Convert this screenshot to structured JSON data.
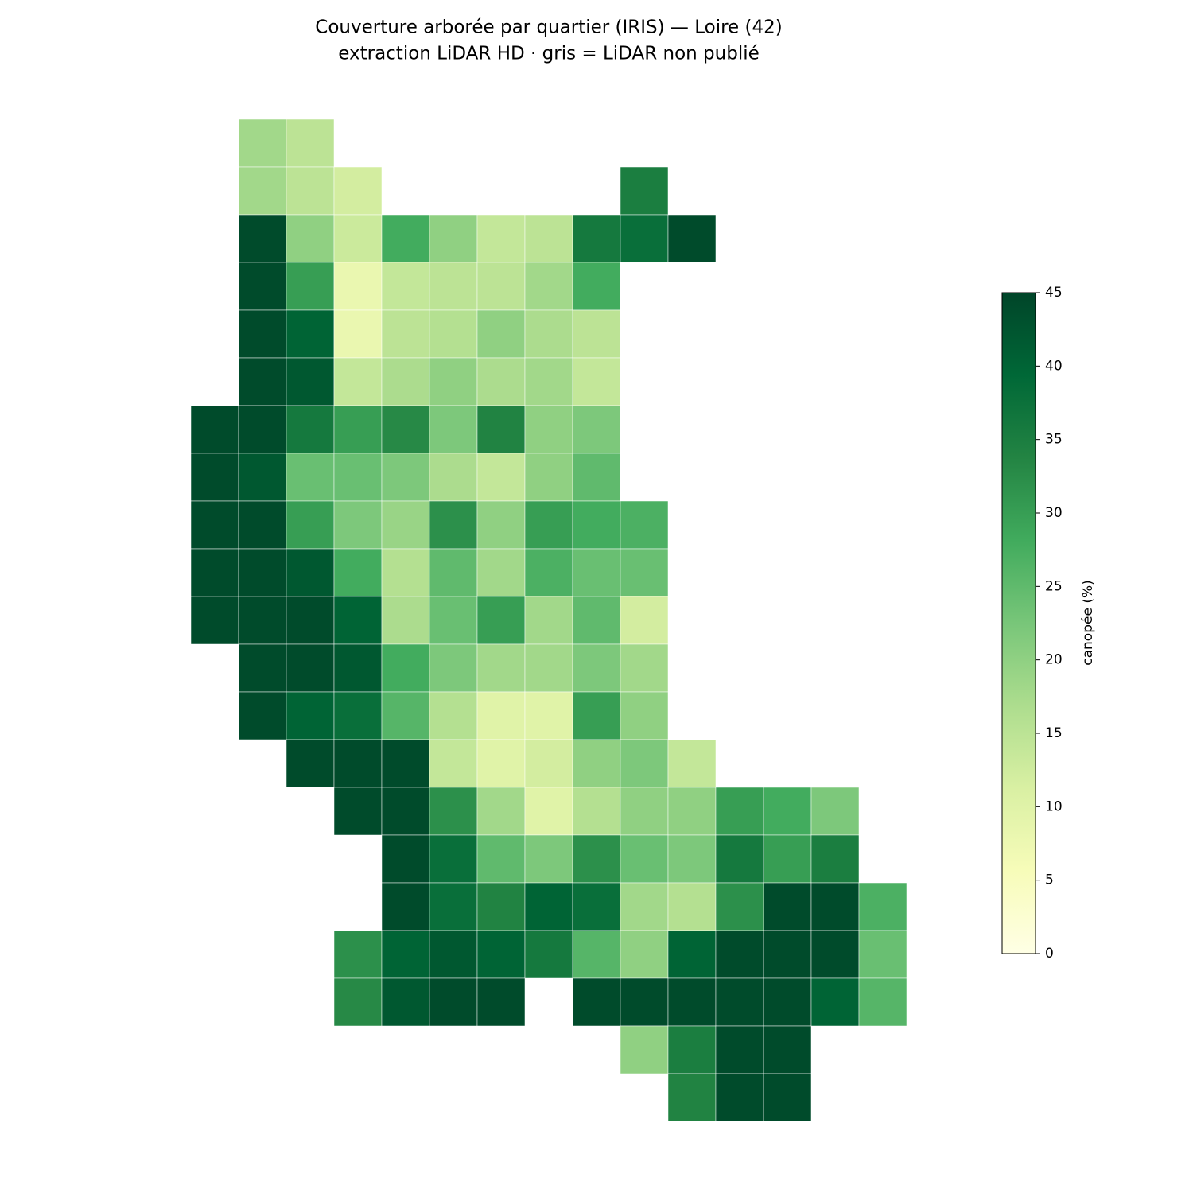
{
  "chart_data": {
    "type": "choropleth",
    "title": "Couverture arborée par quartier (IRIS) — Loire (42)",
    "subtitle": "extraction LiDAR HD · gris = LiDAR non publié",
    "colorbar_label": "canopée (%)",
    "clim": [
      0,
      45
    ],
    "cticks": [
      0,
      5,
      10,
      15,
      20,
      25,
      30,
      35,
      40,
      45
    ],
    "colorscale": [
      "#ffffe5",
      "#f7fcb9",
      "#d9f0a3",
      "#addd8e",
      "#78c679",
      "#41ab5d",
      "#238443",
      "#006837",
      "#004529"
    ],
    "cells": [
      [
        null,
        18,
        15,
        null,
        null,
        null,
        null,
        null,
        null,
        null,
        null,
        null,
        null,
        null,
        null
      ],
      [
        null,
        18,
        15,
        12,
        null,
        null,
        null,
        null,
        null,
        35,
        null,
        null,
        null,
        null,
        null
      ],
      [
        null,
        44,
        20,
        13,
        28,
        20,
        14,
        15,
        36,
        38,
        44,
        null,
        null,
        null,
        null
      ],
      [
        null,
        44,
        30,
        8,
        14,
        15,
        15,
        18,
        28,
        null,
        null,
        null,
        null,
        null,
        null
      ],
      [
        null,
        44,
        40,
        8,
        15,
        16,
        20,
        17,
        15,
        null,
        null,
        null,
        null,
        null,
        null
      ],
      [
        null,
        44,
        42,
        14,
        17,
        20,
        17,
        18,
        14,
        null,
        null,
        null,
        null,
        null,
        null
      ],
      [
        44,
        44,
        36,
        30,
        33,
        22,
        34,
        20,
        22,
        null,
        null,
        null,
        null,
        null,
        null
      ],
      [
        44,
        42,
        24,
        24,
        22,
        17,
        14,
        20,
        25,
        null,
        null,
        null,
        null,
        null,
        null
      ],
      [
        44,
        44,
        30,
        22,
        19,
        32,
        20,
        30,
        28,
        27,
        null,
        null,
        null,
        null,
        null
      ],
      [
        44,
        44,
        42,
        28,
        16,
        25,
        18,
        27,
        24,
        24,
        null,
        null,
        null,
        null,
        null
      ],
      [
        44,
        44,
        44,
        40,
        17,
        24,
        30,
        18,
        25,
        12,
        null,
        null,
        null,
        null,
        null
      ],
      [
        null,
        44,
        44,
        42,
        28,
        22,
        18,
        18,
        22,
        18,
        null,
        null,
        null,
        null,
        null
      ],
      [
        null,
        44,
        40,
        38,
        26,
        16,
        10,
        10,
        30,
        20,
        null,
        null,
        null,
        null,
        null
      ],
      [
        null,
        null,
        44,
        44,
        44,
        14,
        10,
        12,
        20,
        22,
        14,
        null,
        null,
        null,
        null
      ],
      [
        null,
        null,
        null,
        44,
        44,
        32,
        18,
        10,
        16,
        20,
        20,
        30,
        28,
        22,
        null
      ],
      [
        null,
        null,
        null,
        null,
        44,
        38,
        25,
        22,
        32,
        24,
        22,
        36,
        30,
        35,
        null
      ],
      [
        null,
        null,
        null,
        null,
        44,
        38,
        34,
        40,
        38,
        18,
        16,
        32,
        44,
        44,
        27
      ],
      [
        null,
        null,
        null,
        32,
        40,
        42,
        40,
        36,
        26,
        20,
        40,
        44,
        44,
        44,
        24
      ],
      [
        null,
        null,
        null,
        33,
        42,
        44,
        44,
        null,
        44,
        44,
        44,
        44,
        44,
        40,
        26
      ],
      [
        null,
        null,
        null,
        null,
        null,
        null,
        null,
        null,
        null,
        20,
        35,
        44,
        44,
        null,
        null
      ],
      [
        null,
        null,
        null,
        null,
        null,
        null,
        null,
        null,
        null,
        null,
        34,
        44,
        44,
        null,
        null
      ]
    ]
  }
}
